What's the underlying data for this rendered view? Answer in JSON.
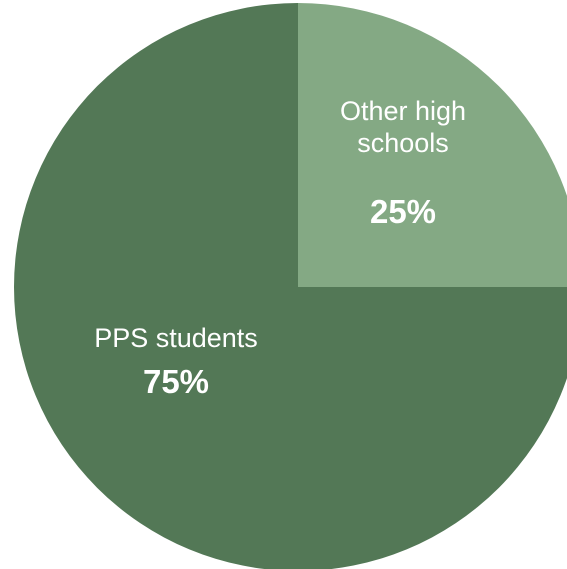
{
  "chart_data": {
    "type": "pie",
    "start_angle_deg": 0,
    "direction": "clockwise",
    "slices": [
      {
        "label_lines": [
          "Other high",
          "schools"
        ],
        "value": 25,
        "value_label": "25%",
        "color": "#84a984"
      },
      {
        "label_lines": [
          "PPS students"
        ],
        "value": 75,
        "value_label": "75%",
        "color": "#537856"
      }
    ]
  }
}
